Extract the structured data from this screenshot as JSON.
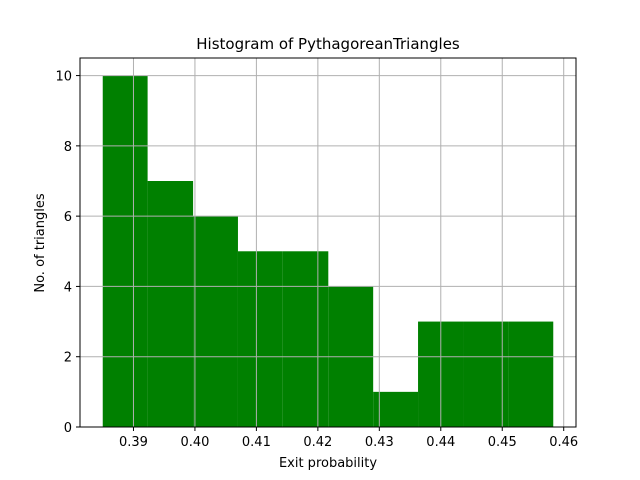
{
  "chart_data": {
    "type": "bar",
    "title": "Histogram of PythagoreanTriangles",
    "xlabel": "Exit probability",
    "ylabel": "No. of triangles",
    "bin_edges": [
      0.385,
      0.3923,
      0.3997,
      0.407,
      0.4143,
      0.4217,
      0.429,
      0.4363,
      0.4437,
      0.451,
      0.4583
    ],
    "values": [
      10,
      7,
      6,
      5,
      5,
      4,
      1,
      3,
      3,
      3
    ],
    "xlim": [
      0.3813,
      0.462
    ],
    "ylim": [
      0,
      10.5
    ],
    "xticks": [
      0.39,
      0.4,
      0.41,
      0.42,
      0.43,
      0.44,
      0.45,
      0.46
    ],
    "xtick_labels": [
      "0.39",
      "0.40",
      "0.41",
      "0.42",
      "0.43",
      "0.44",
      "0.45",
      "0.46"
    ],
    "yticks": [
      0,
      2,
      4,
      6,
      8,
      10
    ],
    "ytick_labels": [
      "0",
      "2",
      "4",
      "6",
      "8",
      "10"
    ],
    "grid": true,
    "colors": {
      "bar": "#008000",
      "grid": "#b0b0b0",
      "axis": "#000000"
    }
  }
}
